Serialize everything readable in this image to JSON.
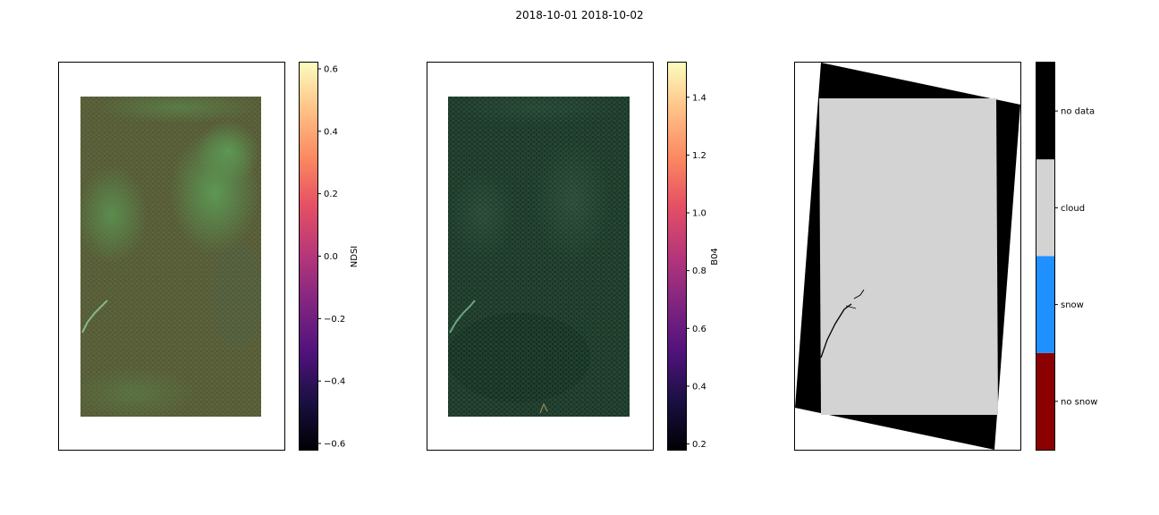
{
  "figure": {
    "title": "2018-10-01 2018-10-02"
  },
  "chart_data": [
    {
      "type": "heatmap",
      "name": "ndsi-map",
      "title": "",
      "xlabel": "",
      "ylabel": "",
      "colorbar": {
        "label": "NDSI",
        "colormap": "magma",
        "range": [
          -0.62,
          0.62
        ],
        "ticks": [
          -0.6,
          -0.4,
          -0.2,
          0.0,
          0.2,
          0.4,
          0.6
        ],
        "tick_labels": [
          "−0.6",
          "−0.4",
          "−0.2",
          "0.0",
          "0.2",
          "0.4",
          "0.6"
        ]
      },
      "overlay_hexagon_color": "#4a8a5a",
      "dominant_colors": [
        "#5c5a32",
        "#4f7a46",
        "#5a8c4e"
      ]
    },
    {
      "type": "heatmap",
      "name": "b04-map",
      "title": "",
      "xlabel": "",
      "ylabel": "",
      "colorbar": {
        "label": "B04",
        "colormap": "magma",
        "range": [
          0.18,
          1.52
        ],
        "ticks": [
          0.2,
          0.4,
          0.6,
          0.8,
          1.0,
          1.2,
          1.4
        ],
        "tick_labels": [
          "0.2",
          "0.4",
          "0.6",
          "0.8",
          "1.0",
          "1.2",
          "1.4"
        ]
      },
      "overlay_hexagon_color": "#3f7a52",
      "dominant_colors": [
        "#1e3a2c",
        "#25402f",
        "#2f4a3a"
      ]
    },
    {
      "type": "heatmap",
      "name": "snow-classification-map",
      "title": "",
      "xlabel": "",
      "ylabel": "",
      "colorbar": {
        "label": "",
        "categories": [
          "no snow",
          "snow",
          "cloud",
          "no data"
        ],
        "colors": [
          "#8b0000",
          "#1e90ff",
          "#d3d3d3",
          "#000000"
        ]
      }
    }
  ]
}
